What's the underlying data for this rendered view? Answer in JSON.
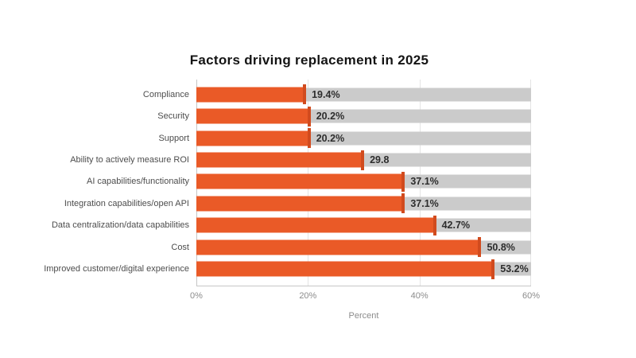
{
  "title": "Factors driving replacement in 2025",
  "colors": {
    "bar": "#ea5a27",
    "bar_cap": "#d14b1e",
    "track": "#cbcbcb",
    "grid": "#e4e4e4",
    "axis": "#c6c6c6",
    "title_text": "#141414",
    "category_text": "#4d4d4d",
    "value_text": "#2d2d2d",
    "tick_text": "#8c8c8c"
  },
  "chart_data": {
    "type": "bar",
    "orientation": "horizontal",
    "title": "Factors driving replacement in 2025",
    "categories": [
      "Compliance",
      "Security",
      "Support",
      "Ability to actively measure ROI",
      "AI capabilities/functionality",
      "Integration capabilities/open API",
      "Data centralization/data capabilities",
      "Cost",
      "Improved customer/digital experience"
    ],
    "values": [
      19.4,
      20.2,
      20.2,
      29.8,
      37.1,
      37.1,
      42.7,
      50.8,
      53.2
    ],
    "value_labels": [
      "19.4%",
      "20.2%",
      "20.2%",
      "29.8",
      "37.1%",
      "37.1%",
      "42.7%",
      "50.8%",
      "53.2%"
    ],
    "xlabel": "Percent",
    "ylabel": "",
    "xlim": [
      0,
      60
    ],
    "x_ticks": [
      "0%",
      "20%",
      "40%",
      "60%"
    ],
    "grid": "vertical",
    "legend": "none",
    "track_full_width": true
  }
}
